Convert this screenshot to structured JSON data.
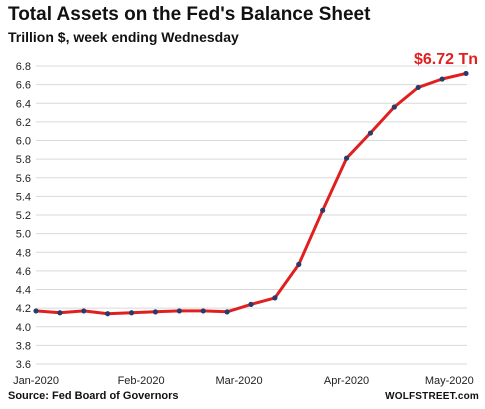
{
  "chart_data": {
    "type": "line",
    "title": "Total Assets on the Fed's Balance Sheet",
    "subtitle": "Trillion $, week ending Wednesday",
    "source": "Source: Fed Board of Governors",
    "brand": "WOLFSTREET.com",
    "callout": "$6.72 Tn",
    "ylim": [
      3.6,
      6.8
    ],
    "yticks": [
      3.6,
      3.8,
      4.0,
      4.2,
      4.4,
      4.6,
      4.8,
      5.0,
      5.2,
      5.4,
      5.6,
      5.8,
      6.0,
      6.2,
      6.4,
      6.6,
      6.8
    ],
    "xtick_labels": [
      {
        "label": "Jan-2020",
        "index": 0
      },
      {
        "label": "Feb-2020",
        "index": 4.4
      },
      {
        "label": "Mar-2020",
        "index": 8.5
      },
      {
        "label": "Apr-2020",
        "index": 13
      },
      {
        "label": "May-2020",
        "index": 17.3
      }
    ],
    "series": [
      {
        "values": [
          4.17,
          4.15,
          4.17,
          4.14,
          4.15,
          4.16,
          4.17,
          4.17,
          4.16,
          4.24,
          4.31,
          4.67,
          5.25,
          5.81,
          6.08,
          6.36,
          6.57,
          6.66,
          6.72
        ],
        "line_color": "#e02020",
        "marker_color": "#2a3a6a"
      }
    ]
  }
}
